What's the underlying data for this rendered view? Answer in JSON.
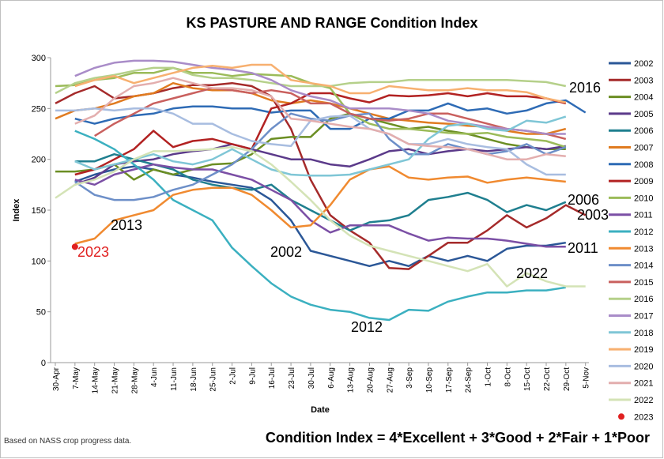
{
  "chart_data": {
    "type": "line",
    "title": "KS PASTURE AND RANGE Condition Index",
    "x_label": "Date",
    "y_label": "Index",
    "note": "Based on NASS crop progress data.",
    "formula": "Condition Index = 4*Excellent + 3*Good + 2*Fair + 1*Poor",
    "categories": [
      "30-Apr",
      "7-May",
      "14-May",
      "21-May",
      "28-May",
      "4-Jun",
      "11-Jun",
      "18-Jun",
      "25-Jun",
      "2-Jul",
      "9-Jul",
      "16-Jul",
      "23-Jul",
      "30-Jul",
      "6-Aug",
      "13-Aug",
      "20-Aug",
      "27-Aug",
      "3-Sep",
      "10-Sep",
      "17-Sep",
      "24-Sep",
      "1-Oct",
      "8-Oct",
      "15-Oct",
      "22-Oct",
      "29-Oct",
      "5-Nov"
    ],
    "ylim": [
      0,
      300
    ],
    "yticks": [
      0,
      50,
      100,
      150,
      200,
      250,
      300
    ],
    "grid": false,
    "series": [
      {
        "name": "2002",
        "color": "#2b5797",
        "values": [
          null,
          178,
          185,
          190,
          193,
          190,
          185,
          182,
          178,
          175,
          172,
          160,
          140,
          110,
          105,
          100,
          95,
          100,
          95,
          105,
          100,
          105,
          100,
          112,
          115,
          115,
          118,
          null
        ]
      },
      {
        "name": "2003",
        "color": "#a52a2a",
        "values": [
          255,
          265,
          272,
          260,
          262,
          265,
          270,
          273,
          273,
          275,
          272,
          262,
          230,
          180,
          145,
          130,
          118,
          93,
          92,
          105,
          118,
          118,
          130,
          145,
          133,
          142,
          155,
          145
        ]
      },
      {
        "name": "2004",
        "color": "#6b8e23",
        "values": [
          188,
          188,
          190,
          195,
          180,
          190,
          185,
          190,
          195,
          196,
          205,
          220,
          222,
          222,
          240,
          245,
          240,
          235,
          230,
          232,
          228,
          225,
          220,
          215,
          212,
          210,
          210,
          null
        ]
      },
      {
        "name": "2005",
        "color": "#5b3a8a",
        "values": [
          null,
          175,
          182,
          195,
          198,
          200,
          205,
          208,
          210,
          215,
          210,
          205,
          200,
          200,
          195,
          193,
          200,
          208,
          210,
          205,
          208,
          210,
          208,
          210,
          212,
          210,
          213,
          null
        ]
      },
      {
        "name": "2006",
        "color": "#1f7f8f",
        "values": [
          null,
          198,
          198,
          205,
          200,
          195,
          190,
          180,
          175,
          172,
          170,
          175,
          160,
          150,
          140,
          130,
          138,
          140,
          145,
          160,
          163,
          167,
          160,
          148,
          155,
          150,
          158,
          null
        ]
      },
      {
        "name": "2007",
        "color": "#e07b20",
        "values": [
          240,
          248,
          250,
          255,
          262,
          265,
          275,
          270,
          268,
          268,
          265,
          258,
          255,
          258,
          255,
          250,
          245,
          240,
          238,
          236,
          235,
          233,
          232,
          228,
          225,
          225,
          230,
          null
        ]
      },
      {
        "name": "2008",
        "color": "#2e6bb5",
        "values": [
          null,
          240,
          235,
          240,
          243,
          245,
          250,
          252,
          252,
          250,
          250,
          246,
          248,
          248,
          230,
          230,
          240,
          240,
          248,
          248,
          255,
          248,
          250,
          245,
          248,
          255,
          258,
          246
        ]
      },
      {
        "name": "2009",
        "color": "#b22222",
        "values": [
          null,
          185,
          190,
          200,
          210,
          228,
          212,
          218,
          220,
          215,
          210,
          250,
          255,
          265,
          265,
          260,
          256,
          263,
          262,
          263,
          265,
          262,
          265,
          262,
          262,
          260,
          255,
          null
        ]
      },
      {
        "name": "2010",
        "color": "#9bbb59",
        "values": [
          272,
          273,
          278,
          280,
          285,
          285,
          290,
          285,
          285,
          282,
          284,
          283,
          282,
          275,
          270,
          245,
          235,
          230,
          230,
          228,
          226,
          225,
          226,
          222,
          220,
          218,
          212,
          null
        ]
      },
      {
        "name": "2011",
        "color": "#7b4fa5",
        "values": [
          null,
          180,
          175,
          185,
          190,
          195,
          192,
          190,
          190,
          185,
          180,
          170,
          160,
          140,
          128,
          135,
          135,
          135,
          127,
          120,
          123,
          122,
          122,
          120,
          117,
          114,
          114,
          null
        ]
      },
      {
        "name": "2012",
        "color": "#3bb0c0",
        "values": [
          null,
          228,
          220,
          210,
          195,
          180,
          160,
          150,
          140,
          113,
          95,
          78,
          65,
          57,
          52,
          50,
          44,
          42,
          52,
          51,
          60,
          65,
          69,
          69,
          71,
          71,
          74,
          null
        ]
      },
      {
        "name": "2013",
        "color": "#f08a30",
        "values": [
          null,
          117,
          122,
          140,
          145,
          150,
          165,
          170,
          172,
          172,
          165,
          150,
          133,
          135,
          155,
          180,
          190,
          193,
          182,
          180,
          182,
          183,
          177,
          180,
          182,
          180,
          178,
          null
        ]
      },
      {
        "name": "2014",
        "color": "#6d8fc8",
        "values": [
          null,
          178,
          165,
          160,
          160,
          163,
          170,
          175,
          185,
          195,
          210,
          230,
          245,
          240,
          238,
          243,
          245,
          220,
          205,
          205,
          215,
          210,
          205,
          208,
          215,
          205,
          212,
          null
        ]
      },
      {
        "name": "2015",
        "color": "#c9605e",
        "values": [
          null,
          null,
          223,
          235,
          245,
          255,
          260,
          265,
          270,
          268,
          265,
          268,
          265,
          255,
          255,
          245,
          240,
          238,
          240,
          245,
          245,
          240,
          235,
          230,
          228,
          225,
          220,
          null
        ]
      },
      {
        "name": "2016",
        "color": "#b5d08a",
        "values": [
          265,
          275,
          280,
          283,
          287,
          290,
          290,
          283,
          280,
          280,
          278,
          275,
          272,
          272,
          272,
          275,
          276,
          276,
          278,
          278,
          278,
          278,
          278,
          278,
          277,
          276,
          272,
          null
        ]
      },
      {
        "name": "2017",
        "color": "#a98cc8",
        "values": [
          null,
          282,
          290,
          295,
          297,
          297,
          296,
          293,
          290,
          288,
          285,
          278,
          268,
          262,
          258,
          250,
          250,
          250,
          248,
          245,
          238,
          235,
          232,
          230,
          228,
          225,
          225,
          null
        ]
      },
      {
        "name": "2018",
        "color": "#7fc6d6",
        "values": [
          null,
          198,
          190,
          195,
          200,
          205,
          198,
          195,
          200,
          210,
          200,
          190,
          185,
          184,
          184,
          185,
          190,
          195,
          200,
          220,
          233,
          235,
          230,
          228,
          238,
          236,
          242,
          null
        ]
      },
      {
        "name": "2019",
        "color": "#f7b070",
        "values": [
          null,
          272,
          278,
          282,
          275,
          280,
          285,
          290,
          292,
          290,
          293,
          293,
          278,
          275,
          272,
          265,
          265,
          272,
          270,
          268,
          268,
          270,
          268,
          268,
          266,
          260,
          256,
          null
        ]
      },
      {
        "name": "2020",
        "color": "#a8bde0",
        "values": [
          248,
          248,
          250,
          248,
          250,
          250,
          245,
          235,
          235,
          225,
          218,
          215,
          213,
          238,
          242,
          243,
          230,
          225,
          215,
          215,
          220,
          215,
          212,
          210,
          195,
          185,
          185,
          null
        ]
      },
      {
        "name": "2021",
        "color": "#e3aeae",
        "values": [
          null,
          235,
          243,
          260,
          272,
          275,
          280,
          275,
          270,
          270,
          268,
          262,
          240,
          238,
          235,
          232,
          230,
          225,
          215,
          213,
          212,
          210,
          205,
          200,
          200,
          205,
          203,
          null
        ]
      },
      {
        "name": "2022",
        "color": "#d4e3b6",
        "values": [
          162,
          175,
          180,
          188,
          200,
          208,
          208,
          209,
          210,
          212,
          208,
          195,
          178,
          160,
          140,
          125,
          115,
          110,
          105,
          100,
          95,
          90,
          97,
          75,
          88,
          80,
          75,
          75
        ]
      },
      {
        "name": "2023",
        "color": "#e02020",
        "values": [
          null,
          114,
          null,
          null,
          null,
          null,
          null,
          null,
          null,
          null,
          null,
          null,
          null,
          null,
          null,
          null,
          null,
          null,
          null,
          null,
          null,
          null,
          null,
          null,
          null,
          null,
          null,
          null
        ]
      }
    ]
  }
}
